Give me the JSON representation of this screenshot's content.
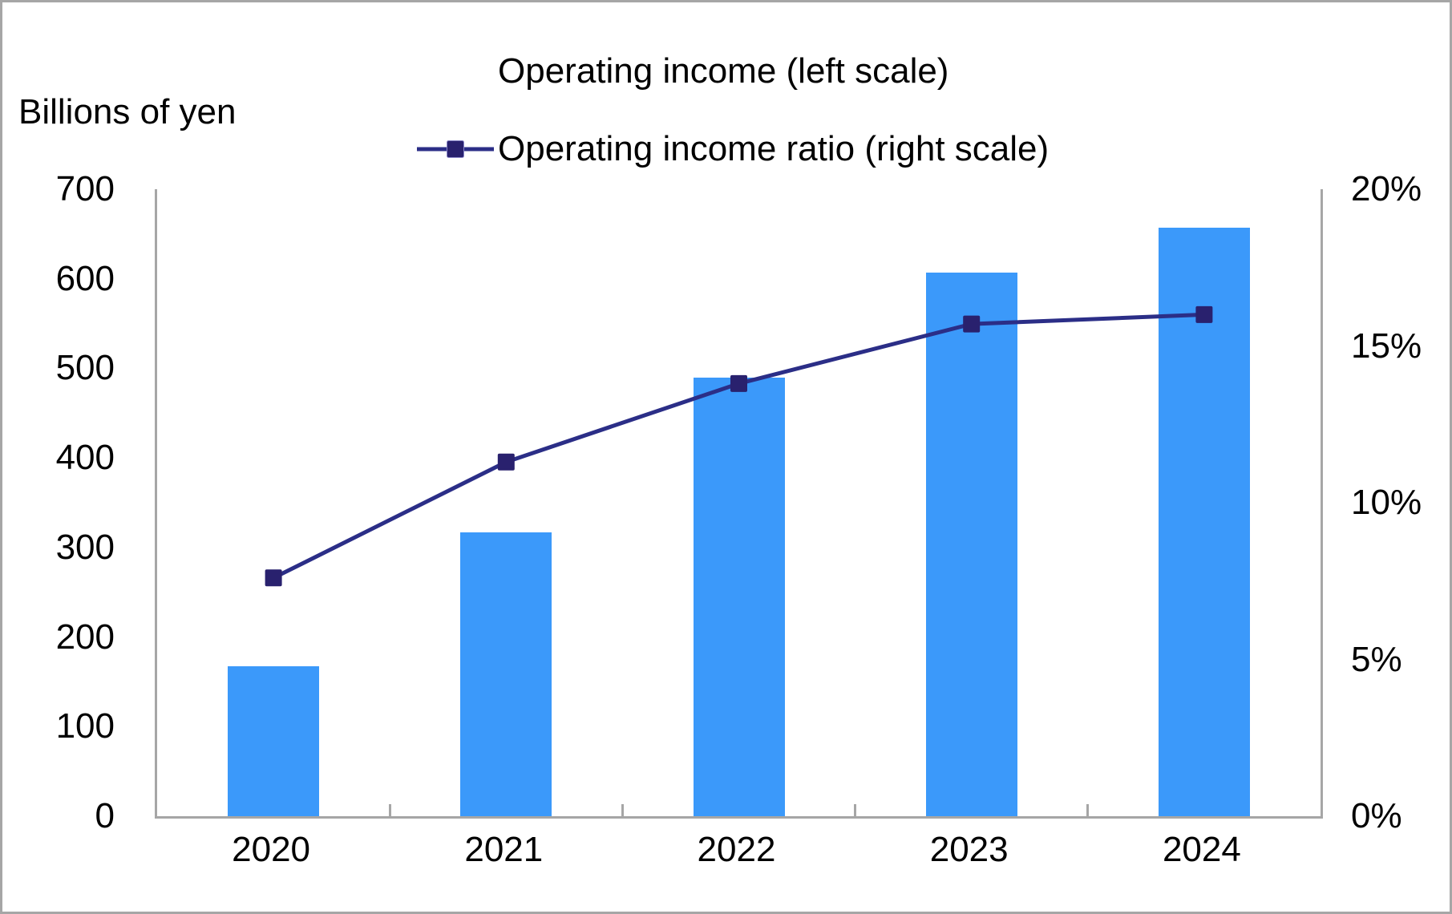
{
  "chart_data": {
    "type": "bar+line combo",
    "categories": [
      "2020",
      "2021",
      "2022",
      "2023",
      "2024"
    ],
    "series": [
      {
        "name": "Operating income (left scale)",
        "type": "bar",
        "axis": "left",
        "color": "#3b99fa",
        "values": [
          167,
          317,
          490,
          607,
          657
        ]
      },
      {
        "name": "Operating income ratio (right scale)",
        "type": "line",
        "axis": "right",
        "color": "#2b2e87",
        "marker": "square",
        "marker_color": "#29216e",
        "values_percent": [
          7.6,
          11.3,
          13.8,
          15.7,
          16.0
        ]
      }
    ],
    "left_axis": {
      "title": "Billions of yen",
      "range": [
        0,
        700
      ],
      "ticks": [
        0,
        100,
        200,
        300,
        400,
        500,
        600,
        700
      ]
    },
    "right_axis": {
      "range_percent": [
        0,
        20
      ],
      "tick_values": [
        0,
        5,
        10,
        15,
        20
      ],
      "tick_labels": [
        "0%",
        "5%",
        "10%",
        "15%",
        "20%"
      ]
    },
    "x_axis": {
      "tick_labels": [
        "2020",
        "2021",
        "2022",
        "2023",
        "2024"
      ]
    },
    "legend_position": "top-center",
    "grid": false,
    "colors": {
      "axis": "#a6a6a6",
      "border": "#a6a6a6",
      "text": "#000000",
      "background": "#ffffff"
    }
  }
}
